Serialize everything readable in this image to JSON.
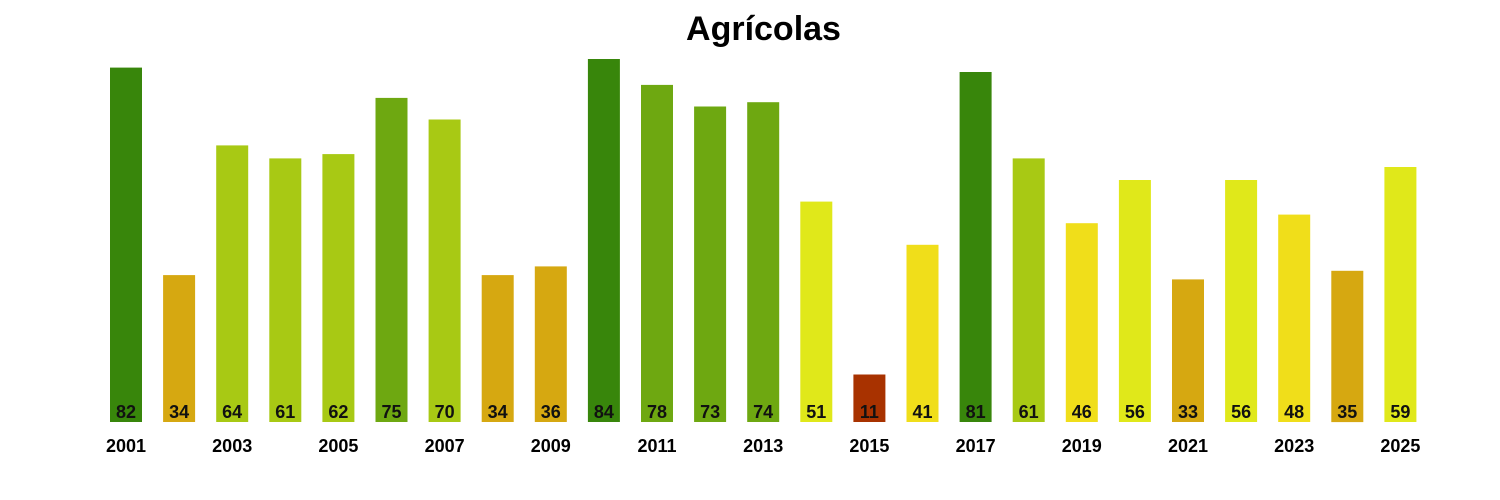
{
  "chart_data": {
    "type": "bar",
    "title": "Agrícolas",
    "xlabel": "",
    "ylabel": "",
    "categories": [
      "2001",
      "2002",
      "2003",
      "2004",
      "2005",
      "2006",
      "2007",
      "2008",
      "2009",
      "2010",
      "2011",
      "2012",
      "2013",
      "2014",
      "2015",
      "2016",
      "2017",
      "2018",
      "2019",
      "2020",
      "2021",
      "2022",
      "2023",
      "2024",
      "2025"
    ],
    "tick_labels": [
      "2001",
      "",
      "2003",
      "",
      "2005",
      "",
      "2007",
      "",
      "2009",
      "",
      "2011",
      "",
      "2013",
      "",
      "2015",
      "",
      "2017",
      "",
      "2019",
      "",
      "2021",
      "",
      "2023",
      "",
      "2025"
    ],
    "values": [
      82,
      34,
      64,
      61,
      62,
      75,
      70,
      34,
      36,
      84,
      78,
      73,
      74,
      51,
      11,
      41,
      81,
      61,
      46,
      56,
      33,
      56,
      48,
      35,
      59
    ],
    "colors": [
      "#38860b",
      "#d6a811",
      "#a8c914",
      "#a8c914",
      "#a8c914",
      "#6ea811",
      "#a8c914",
      "#d6a811",
      "#d6a811",
      "#38860b",
      "#6ea811",
      "#6ea811",
      "#6ea811",
      "#e0e81a",
      "#a83200",
      "#f0de1a",
      "#38860b",
      "#a8c914",
      "#f0de1a",
      "#e0e81a",
      "#d6a811",
      "#e0e81a",
      "#f0de1a",
      "#d6a811",
      "#e0e81a"
    ],
    "ylim": [
      0,
      84
    ],
    "grid": false,
    "legend": "none"
  }
}
